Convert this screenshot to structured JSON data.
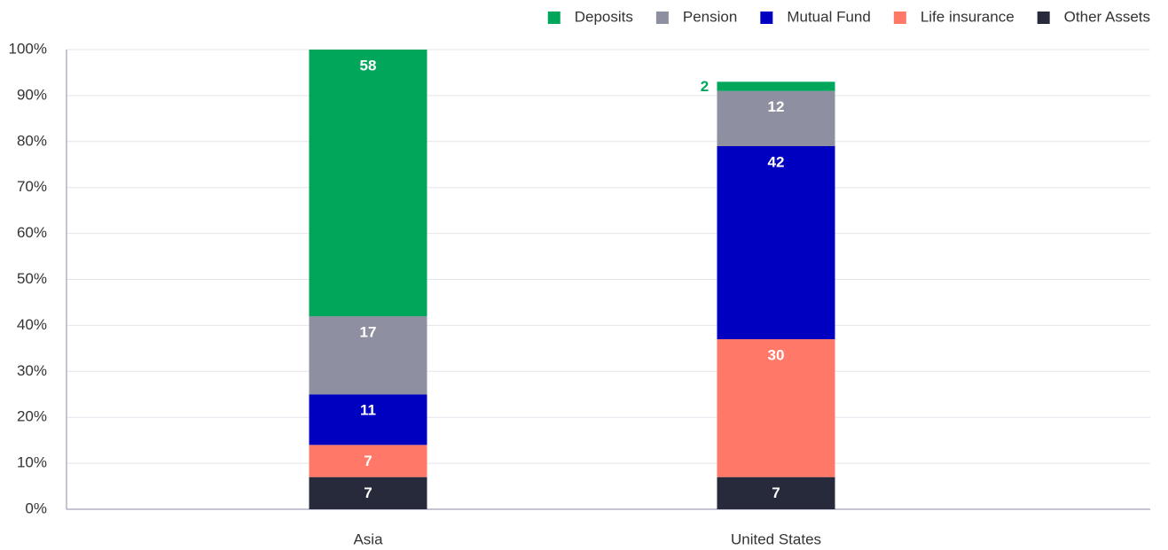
{
  "chart_data": {
    "type": "stacked_bar",
    "categories": [
      "Asia",
      "United States"
    ],
    "series": [
      {
        "name": "Deposits",
        "color": "#00a65a",
        "values": [
          58,
          2
        ]
      },
      {
        "name": "Pension",
        "color": "#8e8fa0",
        "values": [
          17,
          12
        ]
      },
      {
        "name": "Mutual Fund",
        "color": "#0000c0",
        "values": [
          11,
          42
        ]
      },
      {
        "name": "Life insurance",
        "color": "#ff7868",
        "values": [
          7,
          30
        ]
      },
      {
        "name": "Other Assets",
        "color": "#272a3b",
        "values": [
          7,
          7
        ]
      }
    ],
    "ylim": [
      0,
      100
    ],
    "yticks": [
      {
        "value": 0,
        "label": "0%"
      },
      {
        "value": 10,
        "label": "10%"
      },
      {
        "value": 20,
        "label": "20%"
      },
      {
        "value": 30,
        "label": "30%"
      },
      {
        "value": 40,
        "label": "40%"
      },
      {
        "value": 50,
        "label": "50%"
      },
      {
        "value": 60,
        "label": "60%"
      },
      {
        "value": 70,
        "label": "70%"
      },
      {
        "value": 80,
        "label": "80%"
      },
      {
        "value": 90,
        "label": "90%"
      },
      {
        "value": 100,
        "label": "100%"
      }
    ],
    "grid": true,
    "legend": "top-right"
  }
}
